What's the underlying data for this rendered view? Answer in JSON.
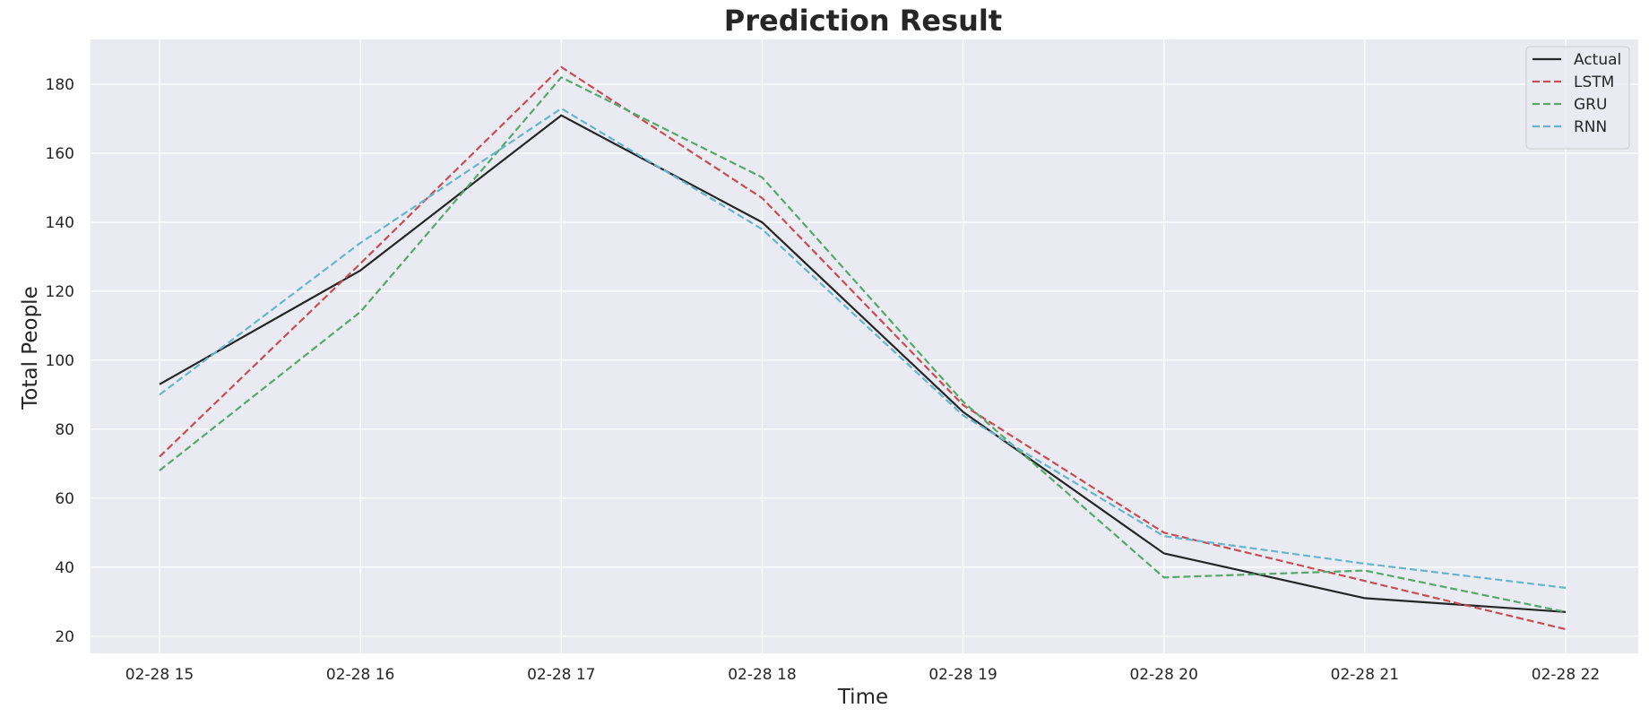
{
  "chart_data": {
    "type": "line",
    "title": "Prediction Result",
    "xlabel": "Time",
    "ylabel": "Total People",
    "categories": [
      "02-28 15",
      "02-28 16",
      "02-28 17",
      "02-28 18",
      "02-28 19",
      "02-28 20",
      "02-28 21",
      "02-28 22"
    ],
    "y_ticks": [
      20,
      40,
      60,
      80,
      100,
      120,
      140,
      160,
      180
    ],
    "ylim": [
      15,
      193
    ],
    "grid": true,
    "legend_position": "top-right",
    "background_color": "#eaeaf2",
    "grid_color": "#ffffff",
    "series": [
      {
        "name": "Actual",
        "color": "#262626",
        "dashed": false,
        "values": [
          93,
          126,
          171,
          140,
          85,
          44,
          31,
          27
        ]
      },
      {
        "name": "LSTM",
        "color": "#c44e52",
        "dashed": true,
        "values": [
          72,
          128,
          185,
          147,
          87,
          50,
          36,
          22
        ]
      },
      {
        "name": "GRU",
        "color": "#55a868",
        "dashed": true,
        "values": [
          68,
          114,
          182,
          153,
          88,
          37,
          39,
          27
        ]
      },
      {
        "name": "RNN",
        "color": "#64b5cd",
        "dashed": true,
        "values": [
          90,
          134,
          173,
          138,
          84,
          49,
          41,
          34
        ]
      }
    ]
  }
}
